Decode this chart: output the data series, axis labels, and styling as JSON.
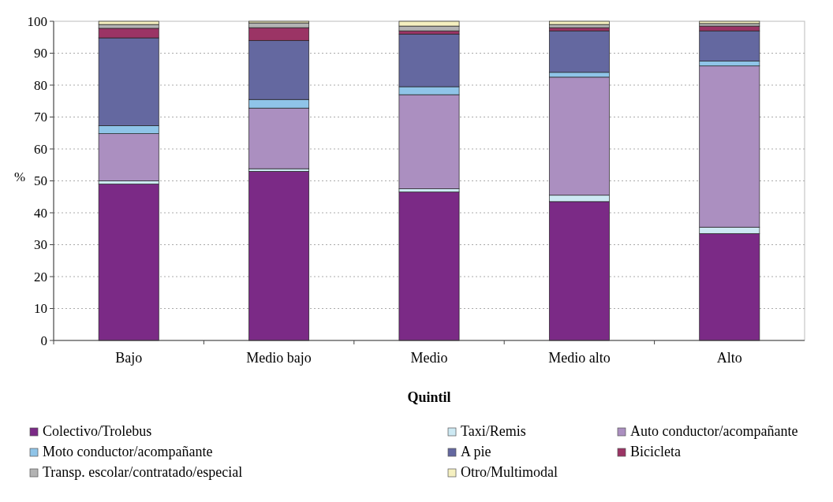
{
  "chart_data": {
    "type": "bar",
    "stacked": true,
    "xlabel": "Quintil",
    "ylabel": "%",
    "categories": [
      "Bajo",
      "Medio bajo",
      "Medio",
      "Medio alto",
      "Alto"
    ],
    "series": [
      {
        "name": "Colectivo/Trolebus",
        "color": "#7b2a86",
        "values": [
          49,
          53,
          46.5,
          43.5,
          33.5
        ]
      },
      {
        "name": "Taxi/Remis",
        "color": "#cde9f3",
        "values": [
          1,
          0.8,
          1,
          2,
          2
        ]
      },
      {
        "name": "Auto conductor/acompañante",
        "color": "#ab8fc0",
        "values": [
          14.8,
          19,
          29.5,
          37,
          50.5
        ]
      },
      {
        "name": "Moto conductor/acompañante",
        "color": "#8fc4e8",
        "values": [
          2.5,
          2.7,
          2.5,
          1.5,
          1.5
        ]
      },
      {
        "name": "A pie",
        "color": "#6468a0",
        "values": [
          27.5,
          18.5,
          16.5,
          13,
          9.5
        ]
      },
      {
        "name": "Bicicleta",
        "color": "#9b3465",
        "values": [
          3,
          4,
          1,
          1,
          1.5
        ]
      },
      {
        "name": "Transp. escolar/contratado/especial",
        "color": "#b3b3b3",
        "values": [
          1.2,
          1.5,
          1.5,
          1,
          0.8
        ]
      },
      {
        "name": "Otro/Multimodal",
        "color": "#f5f0c0",
        "values": [
          1,
          0.5,
          1.5,
          1,
          0.7
        ]
      }
    ],
    "ylim": [
      0,
      100
    ],
    "yticks": [
      0,
      10,
      20,
      30,
      40,
      50,
      60,
      70,
      80,
      90,
      100
    ],
    "grid": "y",
    "legend": "bottom"
  }
}
